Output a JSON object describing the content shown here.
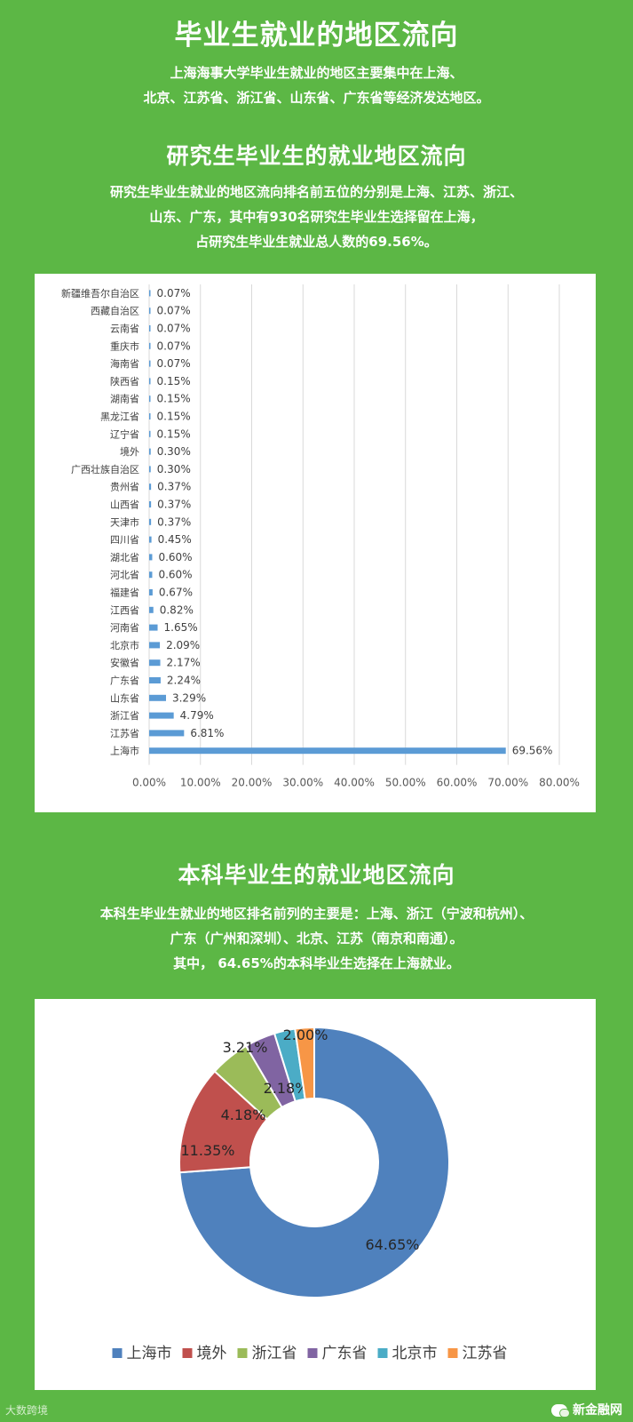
{
  "title": "毕业生就业的地区流向",
  "intro_lines": [
    "上海海事大学毕业生就业的地区主要集中在上海、",
    "北京、江苏省、浙江省、山东省、广东省等经济发达地区。"
  ],
  "grad_section": {
    "title": "研究生毕业生的就业地区流向",
    "lines": [
      "研究生毕业生就业的地区流向排名前五位的分别是上海、江苏、浙江、",
      "山东、广东，其中有930名研究生毕业生选择留在上海，",
      "占研究生毕业生就业总人数的69.56%。"
    ]
  },
  "undergrad_section": {
    "title": "本科毕业生的就业地区流向",
    "lines": [
      "本科生毕业生就业的地区排名前列的主要是：上海、浙江（宁波和杭州）、",
      "广东（广州和深圳）、北京、江苏（南京和南通）。",
      "其中， 64.65%的本科毕业生选择在上海就业。"
    ]
  },
  "chart_data": [
    {
      "type": "bar",
      "orientation": "horizontal",
      "categories": [
        "新疆维吾尔自治区",
        "西藏自治区",
        "云南省",
        "重庆市",
        "海南省",
        "陕西省",
        "湖南省",
        "黑龙江省",
        "辽宁省",
        "境外",
        "广西壮族自治区",
        "贵州省",
        "山西省",
        "天津市",
        "四川省",
        "湖北省",
        "河北省",
        "福建省",
        "江西省",
        "河南省",
        "北京市",
        "安徽省",
        "广东省",
        "山东省",
        "浙江省",
        "江苏省",
        "上海市"
      ],
      "values": [
        0.07,
        0.07,
        0.07,
        0.07,
        0.07,
        0.15,
        0.15,
        0.15,
        0.15,
        0.3,
        0.3,
        0.37,
        0.37,
        0.37,
        0.45,
        0.6,
        0.6,
        0.67,
        0.82,
        1.65,
        2.09,
        2.17,
        2.24,
        3.29,
        4.79,
        6.81,
        69.56
      ],
      "labels": [
        "0.07%",
        "0.07%",
        "0.07%",
        "0.07%",
        "0.07%",
        "0.15%",
        "0.15%",
        "0.15%",
        "0.15%",
        "0.30%",
        "0.30%",
        "0.37%",
        "0.37%",
        "0.37%",
        "0.45%",
        "0.60%",
        "0.60%",
        "0.67%",
        "0.82%",
        "1.65%",
        "2.09%",
        "2.17%",
        "2.24%",
        "3.29%",
        "4.79%",
        "6.81%",
        "69.56%"
      ],
      "xlim": [
        0,
        80
      ],
      "xticks": [
        "0.00%",
        "10.00%",
        "20.00%",
        "30.00%",
        "40.00%",
        "50.00%",
        "60.00%",
        "70.00%",
        "80.00%"
      ],
      "grid": true,
      "color": "#5b9bd5"
    },
    {
      "type": "pie",
      "donut": true,
      "categories": [
        "上海市",
        "境外",
        "浙江省",
        "广东省",
        "北京市",
        "江苏省"
      ],
      "values": [
        64.65,
        11.35,
        4.18,
        3.21,
        2.18,
        2.0
      ],
      "labels": [
        "64.65%",
        "11.35%",
        "4.18%",
        "3.21%",
        "2.18%",
        "2.00%"
      ],
      "colors": [
        "#4f81bd",
        "#c0504d",
        "#9bbb59",
        "#8064a2",
        "#4bacc6",
        "#f79646"
      ],
      "legend": "bottom"
    }
  ],
  "footer": {
    "left": "大数跨境",
    "right": "新金融网"
  }
}
